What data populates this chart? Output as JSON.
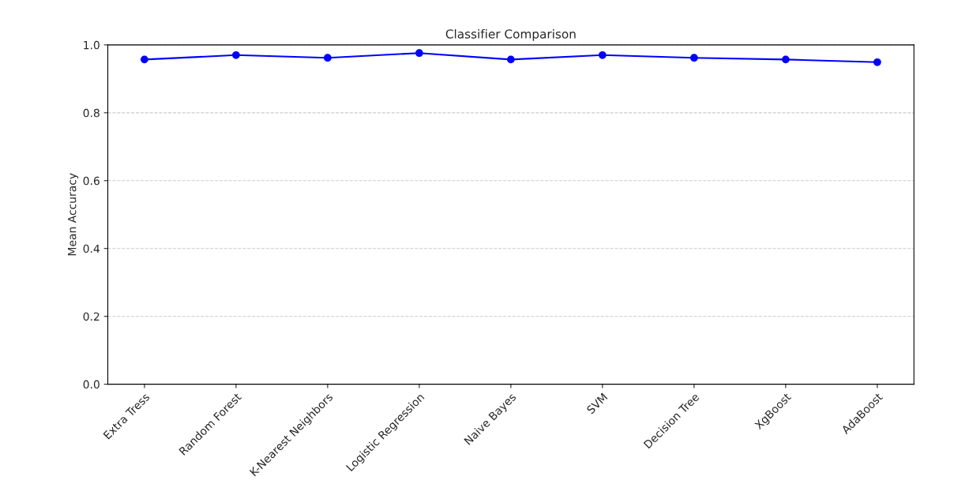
{
  "chart_data": {
    "type": "line",
    "title": "Classifier Comparison",
    "ylabel": "Mean Accuracy",
    "categories": [
      "Extra Tress",
      "Random Forest",
      "K-Nearest Neighbors",
      "Logistic Regression",
      "Naive Bayes",
      "SVM",
      "Decision Tree",
      "XgBoost",
      "AdaBoost"
    ],
    "series": [
      {
        "color": "#0000ff",
        "values": [
          0.957,
          0.97,
          0.962,
          0.976,
          0.957,
          0.97,
          0.962,
          0.957,
          0.949
        ]
      }
    ],
    "ylim": [
      0,
      1
    ],
    "yticks": [
      {
        "value": 0,
        "label": "0.0"
      },
      {
        "value": 0.2,
        "label": "0.2"
      },
      {
        "value": 0.4,
        "label": "0.4"
      },
      {
        "value": 0.6,
        "label": "0.6"
      },
      {
        "value": 0.8,
        "label": "0.8"
      },
      {
        "value": 1,
        "label": "1.0"
      }
    ],
    "grid": "y",
    "marker": "circle",
    "line_style": "solid"
  }
}
